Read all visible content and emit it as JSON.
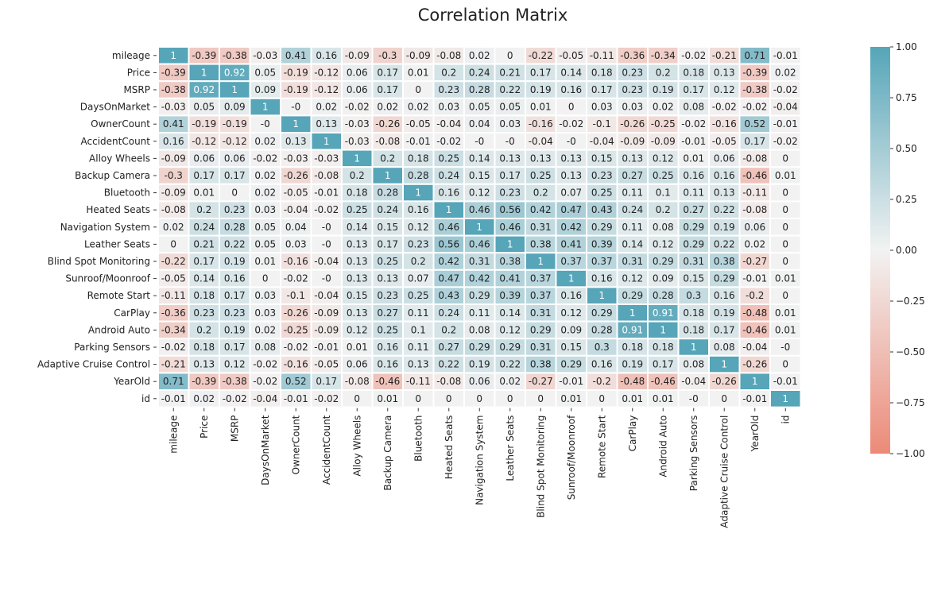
{
  "chart_data": {
    "type": "heatmap",
    "title": "Correlation Matrix",
    "labels": [
      "mileage",
      "Price",
      "MSRP",
      "DaysOnMarket",
      "OwnerCount",
      "AccidentCount",
      "Alloy Wheels",
      "Backup Camera",
      "Bluetooth",
      "Heated Seats",
      "Navigation System",
      "Leather Seats",
      "Blind Spot Monitoring",
      "Sunroof/Moonroof",
      "Remote Start",
      "CarPlay",
      "Android Auto",
      "Parking Sensors",
      "Adaptive Cruise Control",
      "YearOld",
      "id"
    ],
    "value_labels": [
      [
        "1",
        "-0.39",
        "-0.38",
        "-0.03",
        "0.41",
        "0.16",
        "-0.09",
        "-0.3",
        "-0.09",
        "-0.08",
        "0.02",
        "0",
        "-0.22",
        "-0.05",
        "-0.11",
        "-0.36",
        "-0.34",
        "-0.02",
        "-0.21",
        "0.71",
        "-0.01"
      ],
      [
        "-0.39",
        "1",
        "0.92",
        "0.05",
        "-0.19",
        "-0.12",
        "0.06",
        "0.17",
        "0.01",
        "0.2",
        "0.24",
        "0.21",
        "0.17",
        "0.14",
        "0.18",
        "0.23",
        "0.2",
        "0.18",
        "0.13",
        "-0.39",
        "0.02"
      ],
      [
        "-0.38",
        "0.92",
        "1",
        "0.09",
        "-0.19",
        "-0.12",
        "0.06",
        "0.17",
        "0",
        "0.23",
        "0.28",
        "0.22",
        "0.19",
        "0.16",
        "0.17",
        "0.23",
        "0.19",
        "0.17",
        "0.12",
        "-0.38",
        "-0.02"
      ],
      [
        "-0.03",
        "0.05",
        "0.09",
        "1",
        "-0",
        "0.02",
        "-0.02",
        "0.02",
        "0.02",
        "0.03",
        "0.05",
        "0.05",
        "0.01",
        "0",
        "0.03",
        "0.03",
        "0.02",
        "0.08",
        "-0.02",
        "-0.02",
        "-0.04"
      ],
      [
        "0.41",
        "-0.19",
        "-0.19",
        "-0",
        "1",
        "0.13",
        "-0.03",
        "-0.26",
        "-0.05",
        "-0.04",
        "0.04",
        "0.03",
        "-0.16",
        "-0.02",
        "-0.1",
        "-0.26",
        "-0.25",
        "-0.02",
        "-0.16",
        "0.52",
        "-0.01"
      ],
      [
        "0.16",
        "-0.12",
        "-0.12",
        "0.02",
        "0.13",
        "1",
        "-0.03",
        "-0.08",
        "-0.01",
        "-0.02",
        "-0",
        "-0",
        "-0.04",
        "-0",
        "-0.04",
        "-0.09",
        "-0.09",
        "-0.01",
        "-0.05",
        "0.17",
        "-0.02"
      ],
      [
        "-0.09",
        "0.06",
        "0.06",
        "-0.02",
        "-0.03",
        "-0.03",
        "1",
        "0.2",
        "0.18",
        "0.25",
        "0.14",
        "0.13",
        "0.13",
        "0.13",
        "0.15",
        "0.13",
        "0.12",
        "0.01",
        "0.06",
        "-0.08",
        "0"
      ],
      [
        "-0.3",
        "0.17",
        "0.17",
        "0.02",
        "-0.26",
        "-0.08",
        "0.2",
        "1",
        "0.28",
        "0.24",
        "0.15",
        "0.17",
        "0.25",
        "0.13",
        "0.23",
        "0.27",
        "0.25",
        "0.16",
        "0.16",
        "-0.46",
        "0.01"
      ],
      [
        "-0.09",
        "0.01",
        "0",
        "0.02",
        "-0.05",
        "-0.01",
        "0.18",
        "0.28",
        "1",
        "0.16",
        "0.12",
        "0.23",
        "0.2",
        "0.07",
        "0.25",
        "0.11",
        "0.1",
        "0.11",
        "0.13",
        "-0.11",
        "0"
      ],
      [
        "-0.08",
        "0.2",
        "0.23",
        "0.03",
        "-0.04",
        "-0.02",
        "0.25",
        "0.24",
        "0.16",
        "1",
        "0.46",
        "0.56",
        "0.42",
        "0.47",
        "0.43",
        "0.24",
        "0.2",
        "0.27",
        "0.22",
        "-0.08",
        "0"
      ],
      [
        "0.02",
        "0.24",
        "0.28",
        "0.05",
        "0.04",
        "-0",
        "0.14",
        "0.15",
        "0.12",
        "0.46",
        "1",
        "0.46",
        "0.31",
        "0.42",
        "0.29",
        "0.11",
        "0.08",
        "0.29",
        "0.19",
        "0.06",
        "0"
      ],
      [
        "0",
        "0.21",
        "0.22",
        "0.05",
        "0.03",
        "-0",
        "0.13",
        "0.17",
        "0.23",
        "0.56",
        "0.46",
        "1",
        "0.38",
        "0.41",
        "0.39",
        "0.14",
        "0.12",
        "0.29",
        "0.22",
        "0.02",
        "0"
      ],
      [
        "-0.22",
        "0.17",
        "0.19",
        "0.01",
        "-0.16",
        "-0.04",
        "0.13",
        "0.25",
        "0.2",
        "0.42",
        "0.31",
        "0.38",
        "1",
        "0.37",
        "0.37",
        "0.31",
        "0.29",
        "0.31",
        "0.38",
        "-0.27",
        "0"
      ],
      [
        "-0.05",
        "0.14",
        "0.16",
        "0",
        "-0.02",
        "-0",
        "0.13",
        "0.13",
        "0.07",
        "0.47",
        "0.42",
        "0.41",
        "0.37",
        "1",
        "0.16",
        "0.12",
        "0.09",
        "0.15",
        "0.29",
        "-0.01",
        "0.01"
      ],
      [
        "-0.11",
        "0.18",
        "0.17",
        "0.03",
        "-0.1",
        "-0.04",
        "0.15",
        "0.23",
        "0.25",
        "0.43",
        "0.29",
        "0.39",
        "0.37",
        "0.16",
        "1",
        "0.29",
        "0.28",
        "0.3",
        "0.16",
        "-0.2",
        "0"
      ],
      [
        "-0.36",
        "0.23",
        "0.23",
        "0.03",
        "-0.26",
        "-0.09",
        "0.13",
        "0.27",
        "0.11",
        "0.24",
        "0.11",
        "0.14",
        "0.31",
        "0.12",
        "0.29",
        "1",
        "0.91",
        "0.18",
        "0.19",
        "-0.48",
        "0.01"
      ],
      [
        "-0.34",
        "0.2",
        "0.19",
        "0.02",
        "-0.25",
        "-0.09",
        "0.12",
        "0.25",
        "0.1",
        "0.2",
        "0.08",
        "0.12",
        "0.29",
        "0.09",
        "0.28",
        "0.91",
        "1",
        "0.18",
        "0.17",
        "-0.46",
        "0.01"
      ],
      [
        "-0.02",
        "0.18",
        "0.17",
        "0.08",
        "-0.02",
        "-0.01",
        "0.01",
        "0.16",
        "0.11",
        "0.27",
        "0.29",
        "0.29",
        "0.31",
        "0.15",
        "0.3",
        "0.18",
        "0.18",
        "1",
        "0.08",
        "-0.04",
        "-0"
      ],
      [
        "-0.21",
        "0.13",
        "0.12",
        "-0.02",
        "-0.16",
        "-0.05",
        "0.06",
        "0.16",
        "0.13",
        "0.22",
        "0.19",
        "0.22",
        "0.38",
        "0.29",
        "0.16",
        "0.19",
        "0.17",
        "0.08",
        "1",
        "-0.26",
        "0"
      ],
      [
        "0.71",
        "-0.39",
        "-0.38",
        "-0.02",
        "0.52",
        "0.17",
        "-0.08",
        "-0.46",
        "-0.11",
        "-0.08",
        "0.06",
        "0.02",
        "-0.27",
        "-0.01",
        "-0.2",
        "-0.48",
        "-0.46",
        "-0.04",
        "-0.26",
        "1",
        "-0.01"
      ],
      [
        "-0.01",
        "0.02",
        "-0.02",
        "-0.04",
        "-0.01",
        "-0.02",
        "0",
        "0.01",
        "0",
        "0",
        "0",
        "0",
        "0",
        "0.01",
        "0",
        "0.01",
        "0.01",
        "-0",
        "0",
        "-0.01",
        "1"
      ]
    ],
    "vmin": -1,
    "vmax": 1,
    "colorbar_ticks": [
      "1.00",
      "0.75",
      "0.50",
      "0.25",
      "0.00",
      "−0.25",
      "−0.50",
      "−0.75",
      "−1.00"
    ],
    "colors": {
      "positive": "#56a5b8",
      "neutral": "#f2f2f2",
      "negative": "#ec8a78"
    }
  }
}
